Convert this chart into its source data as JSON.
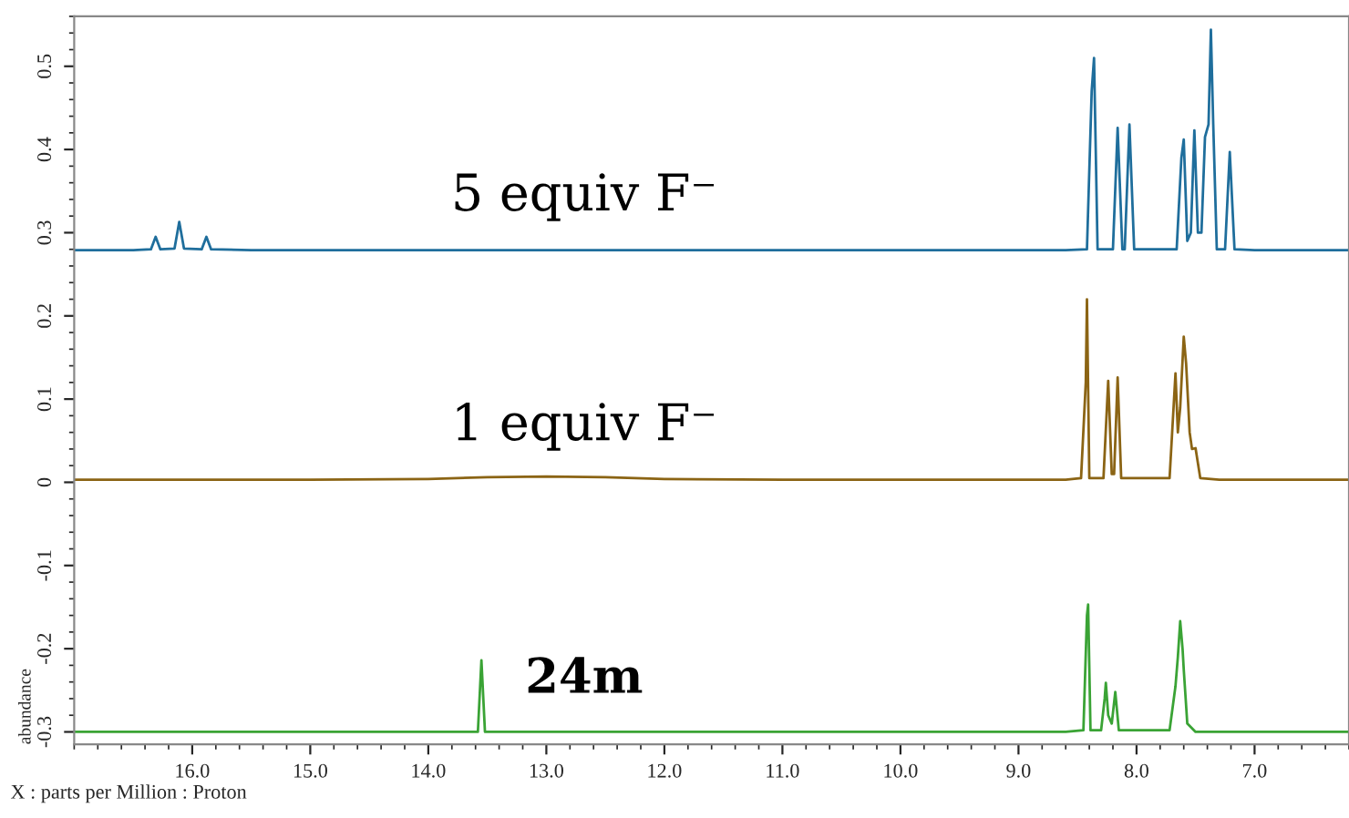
{
  "chart_data": {
    "type": "line",
    "xlabel": "X : parts per Million : Proton",
    "ylabel": "abundance",
    "xlim": [
      17.0,
      6.2
    ],
    "ylim": [
      -0.315,
      0.56
    ],
    "xticks": [
      {
        "value": 16,
        "label": "16.0"
      },
      {
        "value": 15,
        "label": "15.0"
      },
      {
        "value": 14,
        "label": "14.0"
      },
      {
        "value": 13,
        "label": "13.0"
      },
      {
        "value": 12,
        "label": "12.0"
      },
      {
        "value": 11,
        "label": "11.0"
      },
      {
        "value": 10,
        "label": "10.0"
      },
      {
        "value": 9,
        "label": "9.0"
      },
      {
        "value": 8,
        "label": "8.0"
      },
      {
        "value": 7,
        "label": "7.0"
      }
    ],
    "yticks": [
      -0.3,
      -0.2,
      -0.1,
      0,
      0.1,
      0.2,
      0.3,
      0.4,
      0.5
    ],
    "grid": false,
    "legend": false,
    "marker": "none",
    "line_style": "solid",
    "series": [
      {
        "name": "5 equiv F⁻",
        "color": "#1f6e9c",
        "x": [
          17.0,
          16.5,
          16.35,
          16.31,
          16.27,
          16.15,
          16.11,
          16.07,
          15.92,
          15.88,
          15.84,
          15.5,
          15.0,
          14.0,
          13.0,
          12.0,
          11.0,
          10.0,
          9.0,
          8.6,
          8.42,
          8.38,
          8.36,
          8.33,
          8.2,
          8.16,
          8.12,
          8.1,
          8.06,
          8.02,
          7.66,
          7.62,
          7.6,
          7.57,
          7.54,
          7.51,
          7.48,
          7.45,
          7.42,
          7.39,
          7.37,
          7.35,
          7.32,
          7.25,
          7.21,
          7.17,
          7.0,
          6.6,
          6.2
        ],
        "values": [
          0.279,
          0.279,
          0.28,
          0.295,
          0.28,
          0.281,
          0.313,
          0.281,
          0.28,
          0.295,
          0.28,
          0.279,
          0.279,
          0.279,
          0.279,
          0.279,
          0.279,
          0.279,
          0.279,
          0.279,
          0.28,
          0.47,
          0.51,
          0.28,
          0.28,
          0.426,
          0.28,
          0.28,
          0.43,
          0.28,
          0.28,
          0.39,
          0.412,
          0.29,
          0.3,
          0.423,
          0.3,
          0.3,
          0.415,
          0.43,
          0.544,
          0.43,
          0.28,
          0.28,
          0.397,
          0.28,
          0.279,
          0.279,
          0.279
        ]
      },
      {
        "name": "1 equiv F⁻",
        "color": "#8b6414",
        "x": [
          17.0,
          16.0,
          15.0,
          14.0,
          13.5,
          13.0,
          12.5,
          12.0,
          11.0,
          10.0,
          9.0,
          8.6,
          8.47,
          8.43,
          8.42,
          8.4,
          8.28,
          8.24,
          8.21,
          8.19,
          8.16,
          8.13,
          7.72,
          7.67,
          7.65,
          7.63,
          7.6,
          7.58,
          7.55,
          7.53,
          7.5,
          7.46,
          7.3,
          7.0,
          6.2
        ],
        "values": [
          0.003,
          0.003,
          0.003,
          0.004,
          0.006,
          0.007,
          0.006,
          0.004,
          0.003,
          0.003,
          0.003,
          0.003,
          0.005,
          0.12,
          0.22,
          0.005,
          0.005,
          0.122,
          0.01,
          0.01,
          0.126,
          0.005,
          0.005,
          0.131,
          0.06,
          0.09,
          0.175,
          0.143,
          0.06,
          0.04,
          0.041,
          0.005,
          0.003,
          0.003,
          0.003
        ]
      },
      {
        "name": "24m",
        "color": "#3aa335",
        "x": [
          17.0,
          16.0,
          15.0,
          14.0,
          13.58,
          13.55,
          13.52,
          13.0,
          12.0,
          11.0,
          10.0,
          9.0,
          8.6,
          8.45,
          8.42,
          8.41,
          8.39,
          8.3,
          8.27,
          8.26,
          8.24,
          8.21,
          8.18,
          8.15,
          7.72,
          7.67,
          7.65,
          7.63,
          7.61,
          7.6,
          7.57,
          7.5,
          7.0,
          6.2
        ],
        "values": [
          -0.3,
          -0.3,
          -0.3,
          -0.3,
          -0.3,
          -0.214,
          -0.3,
          -0.3,
          -0.3,
          -0.3,
          -0.3,
          -0.3,
          -0.3,
          -0.298,
          -0.16,
          -0.147,
          -0.298,
          -0.298,
          -0.26,
          -0.241,
          -0.28,
          -0.29,
          -0.252,
          -0.298,
          -0.298,
          -0.245,
          -0.21,
          -0.167,
          -0.2,
          -0.225,
          -0.29,
          -0.3,
          -0.3,
          -0.3
        ]
      }
    ]
  }
}
